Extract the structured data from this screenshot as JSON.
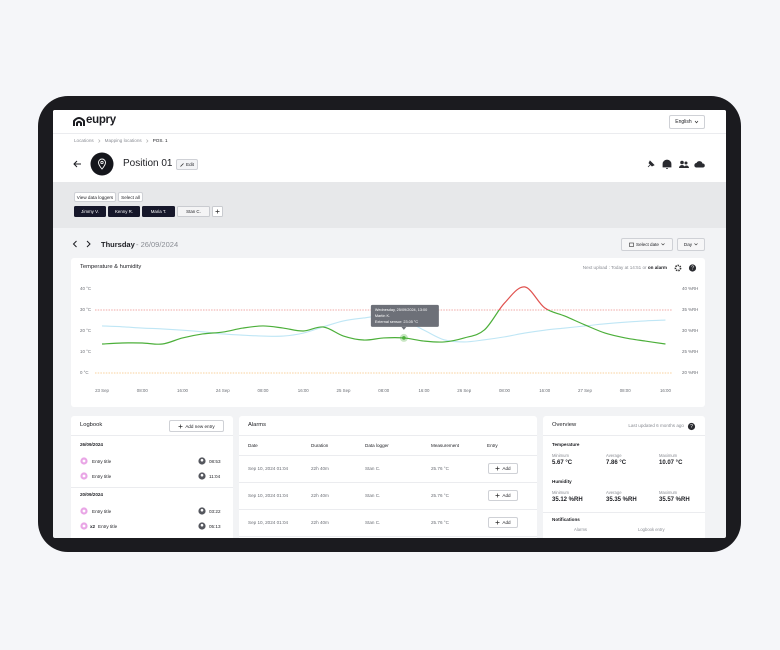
{
  "header": {
    "logo": "eupry",
    "language": "English"
  },
  "breadcrumb": [
    "Locations",
    "Mapping locations",
    "POS. 1"
  ],
  "position": {
    "title": "Position 01",
    "edit": "Edit"
  },
  "loggers": {
    "view": "View data loggers",
    "select_all": "Select all",
    "chips": [
      "Jimmy V.",
      "Kenny R.",
      "Maria T.",
      "Stan C."
    ]
  },
  "date": {
    "day": "Thursday",
    "date": "- 26/09/2024",
    "select_date": "Select date",
    "range": "Day"
  },
  "chart_data": {
    "type": "line",
    "title": "Temperature & humidity",
    "upload_note": "Next upload : Today at 14:51 or",
    "upload_link": "on alarm",
    "tooltip": [
      "Wednesday, 25/09/2024, 13:00",
      "Martin K.",
      "External sensor: 23.05 °C"
    ],
    "x": [
      0,
      4,
      8,
      12,
      16,
      20,
      24,
      28,
      32,
      36,
      40,
      44,
      48,
      52,
      56,
      60,
      64,
      68,
      72,
      76,
      80,
      84,
      88,
      92,
      96,
      100,
      104,
      108,
      112
    ],
    "series": [
      {
        "color": "#4caf3a",
        "axis": "y",
        "values": [
          13.8,
          14.3,
          14.3,
          13.8,
          16.7,
          18.6,
          19.5,
          21.4,
          22.4,
          21.4,
          20,
          21.9,
          17.6,
          15.7,
          16.7,
          16.7,
          15.2,
          14.8,
          16.7,
          20.5,
          33.3,
          41,
          31,
          27.1,
          22.9,
          19,
          16.7,
          15.2,
          13.8
        ]
      },
      {
        "color": "#bfe6f5",
        "axis": "y2",
        "values": [
          31.2,
          31,
          30.7,
          30.5,
          30.2,
          29.8,
          29.3,
          29,
          28.8,
          28.8,
          29.5,
          31,
          32.4,
          33.1,
          33.6,
          32.6,
          30.2,
          27.9,
          27.4,
          27.9,
          28.6,
          29.5,
          30.2,
          30.7,
          31.2,
          31.7,
          32.1,
          32.4,
          32.6
        ]
      }
    ],
    "alarm_high": {
      "value": 30,
      "color": "#e0524f"
    },
    "alarm_low": {
      "value": 0,
      "color": "#f2a33a"
    },
    "grid": false,
    "xlim": [
      -1.4,
      113.3
    ],
    "xticks": [
      {
        "value": 0,
        "label": "23 Sep"
      },
      {
        "value": 8,
        "label": "08:00"
      },
      {
        "value": 16,
        "label": "16:00"
      },
      {
        "value": 24,
        "label": "24 Sep"
      },
      {
        "value": 32,
        "label": "08:00"
      },
      {
        "value": 40,
        "label": "16:00"
      },
      {
        "value": 48,
        "label": "25 Sep"
      },
      {
        "value": 56,
        "label": "08:00"
      },
      {
        "value": 64,
        "label": "16:00"
      },
      {
        "value": 72,
        "label": "26 Sep"
      },
      {
        "value": 80,
        "label": "08:00"
      },
      {
        "value": 88,
        "label": "16:00"
      },
      {
        "value": 96,
        "label": "27 Sep"
      },
      {
        "value": 104,
        "label": "08:00"
      },
      {
        "value": 112,
        "label": "16:00"
      }
    ],
    "ylim": [
      0,
      40
    ],
    "yticks": [
      {
        "value": 0,
        "label": "0 °C"
      },
      {
        "value": 10,
        "label": "10 °C"
      },
      {
        "value": 20,
        "label": "20 °C"
      },
      {
        "value": 30,
        "label": "30 °C"
      },
      {
        "value": 40,
        "label": "40 °C"
      }
    ],
    "y2lim": [
      20,
      40
    ],
    "y2ticks": [
      {
        "value": 20,
        "label": "20 %RH"
      },
      {
        "value": 25,
        "label": "25 %RH"
      },
      {
        "value": 30,
        "label": "30 %RH"
      },
      {
        "value": 35,
        "label": "35 %RH"
      },
      {
        "value": 40,
        "label": "40 %RH"
      }
    ]
  },
  "logbook": {
    "title": "Logbook",
    "add": "Add new entry",
    "groups": [
      {
        "date": "26/09/2024",
        "entries": [
          {
            "title": "Entry title",
            "time": "08:53"
          },
          {
            "title": "Entry title",
            "time": "11:04"
          }
        ]
      },
      {
        "date": "20/09/2024",
        "entries": [
          {
            "title": "Entry title",
            "time": "03:22"
          },
          {
            "count": "x2",
            "title": "Entry title",
            "time": "05:13"
          }
        ]
      }
    ]
  },
  "alarms": {
    "title": "Alarms",
    "columns": [
      "Date",
      "Duration",
      "Data logger",
      "Measurement",
      "Entry"
    ],
    "rows": [
      [
        "Sep 10, 2024 01:04",
        "22h 40m",
        "Stan C.",
        "25.76 °C",
        "Add"
      ],
      [
        "Sep 10, 2024 01:04",
        "22h 40m",
        "Stan C.",
        "25.76 °C",
        "Add"
      ],
      [
        "Sep 10, 2024 01:04",
        "22h 40m",
        "Stan C.",
        "25.76 °C",
        "Add"
      ]
    ]
  },
  "overview": {
    "title": "Overview",
    "updated": "Last updated 6 months ago",
    "temperature": {
      "title": "Temperature",
      "labels": [
        "Minimum",
        "Average",
        "Maximum"
      ],
      "values": [
        "5.67 °C",
        "7.86 °C",
        "10.07 °C"
      ]
    },
    "humidity": {
      "title": "Humidity",
      "labels": [
        "Minimum",
        "Average",
        "Maximum"
      ],
      "values": [
        "35.12 %RH",
        "35.35 %RH",
        "35.57 %RH"
      ]
    },
    "notifications": {
      "title": "Notifications",
      "labels": [
        "Alarms",
        "Logbook entry"
      ]
    }
  }
}
